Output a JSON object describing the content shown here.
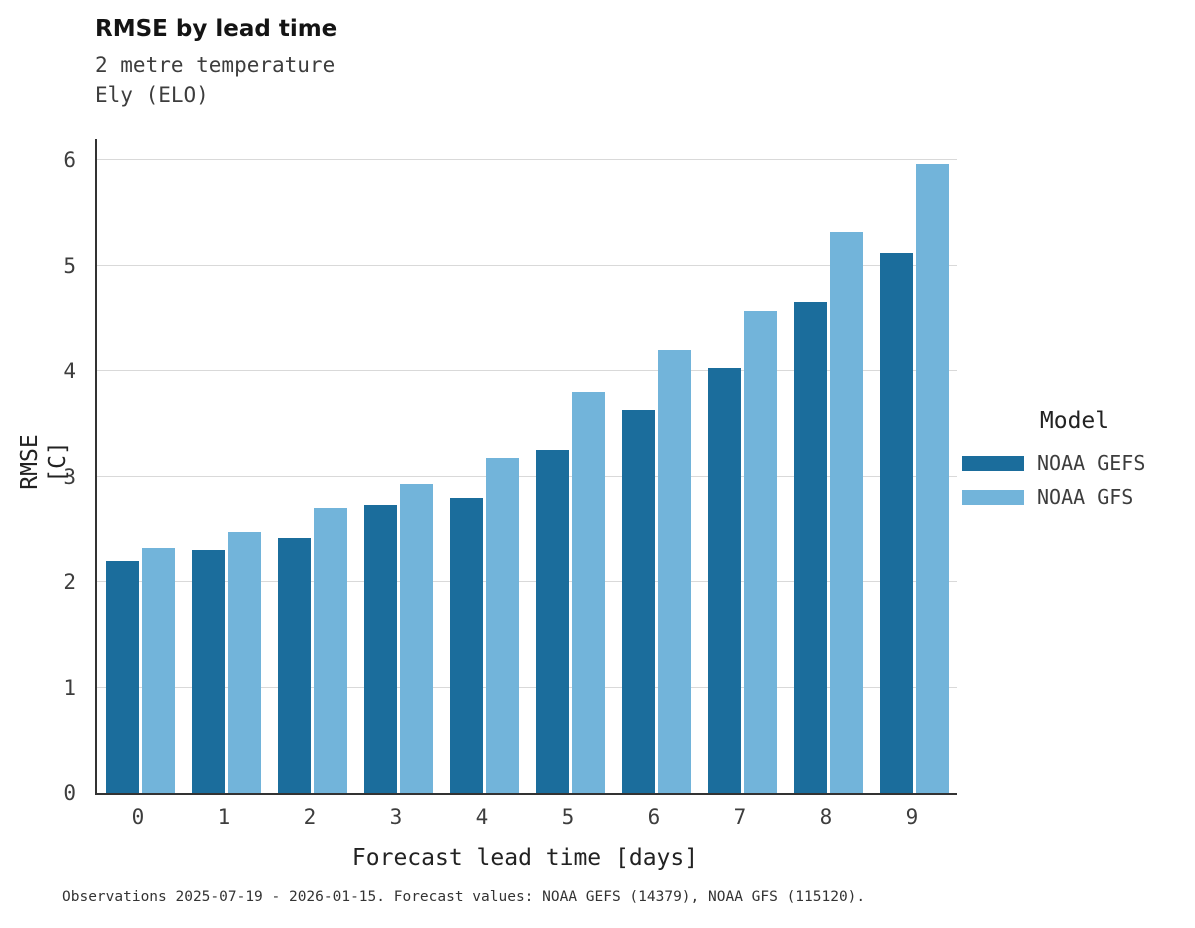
{
  "chart_data": {
    "type": "bar",
    "title": "RMSE by lead time",
    "subtitle_line1": "2 metre temperature",
    "subtitle_line2": "Ely (ELO)",
    "categories": [
      "0",
      "1",
      "2",
      "3",
      "4",
      "5",
      "6",
      "7",
      "8",
      "9"
    ],
    "series": [
      {
        "name": "NOAA GEFS",
        "color": "#1b6d9c",
        "values": [
          2.2,
          2.3,
          2.42,
          2.73,
          2.8,
          3.25,
          3.63,
          4.03,
          4.65,
          5.12
        ]
      },
      {
        "name": "NOAA GFS",
        "color": "#72b4da",
        "values": [
          2.32,
          2.47,
          2.7,
          2.93,
          3.18,
          3.8,
          4.2,
          4.57,
          5.32,
          5.96
        ]
      }
    ],
    "xlabel": "Forecast lead time [days]",
    "ylabel": "RMSE [C]",
    "ylim": [
      0,
      6.2
    ],
    "yticks": [
      0,
      1,
      2,
      3,
      4,
      5,
      6
    ],
    "grid": "horizontal",
    "legend": {
      "title": "Model",
      "position": "right"
    },
    "caption": "Observations 2025-07-19 - 2026-01-15. Forecast values: NOAA GEFS (14379), NOAA GFS (115120)."
  }
}
